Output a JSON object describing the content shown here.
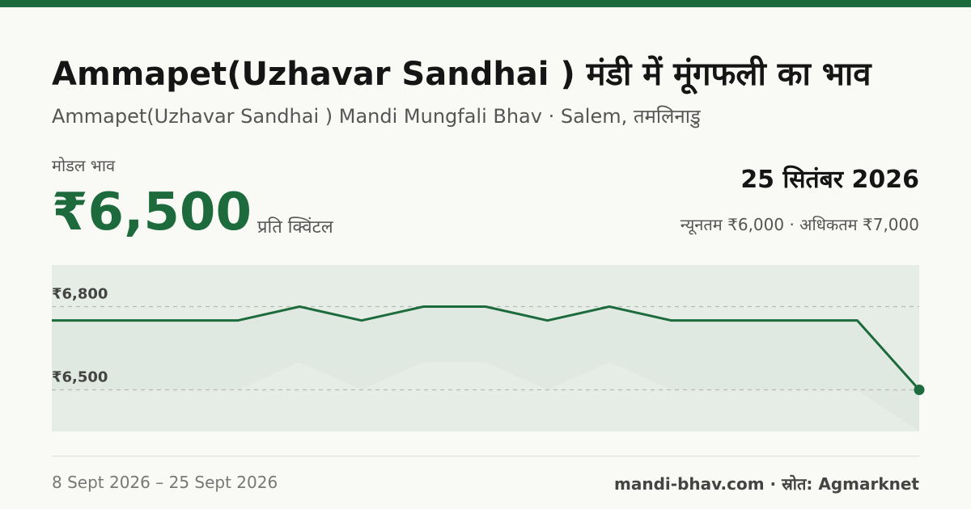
{
  "header": {
    "title": "Ammapet(Uzhavar Sandhai ) मंडी में मूंगफली का भाव",
    "subtitle": "Ammapet(Uzhavar Sandhai ) Mandi Mungfali Bhav · Salem, तमलिनाडु"
  },
  "price": {
    "label": "मोडल भाव",
    "value": "₹6,500",
    "unit": "प्रति क्विंटल"
  },
  "date": "25 सितंबर 2026",
  "minmax": "न्यूनतम ₹6,000 · अधिकतम ₹7,000",
  "colors": {
    "accent": "#1d6b3c",
    "band": "#dfe9e2",
    "band_top": "#e6ece6"
  },
  "chart_data": {
    "type": "line",
    "series": [
      {
        "values": [
          6750,
          6750,
          6750,
          6750,
          6800,
          6750,
          6800,
          6800,
          6750,
          6800,
          6750,
          6750,
          6750,
          6750,
          6500
        ]
      }
    ],
    "band_low": [
      6500,
      6500,
      6500,
      6500,
      6600,
      6500,
      6600,
      6600,
      6500,
      6600,
      6500,
      6500,
      6500,
      6500,
      6350
    ],
    "ylim": [
      6350,
      6950
    ],
    "y_ticks": [
      {
        "value": 6800,
        "label": "₹6,800"
      },
      {
        "value": 6500,
        "label": "₹6,500"
      }
    ],
    "grid": true
  },
  "footer": {
    "date_range": "8 Sept 2026 – 25 Sept 2026",
    "source": "mandi-bhav.com · स्रोत: Agmarknet"
  }
}
